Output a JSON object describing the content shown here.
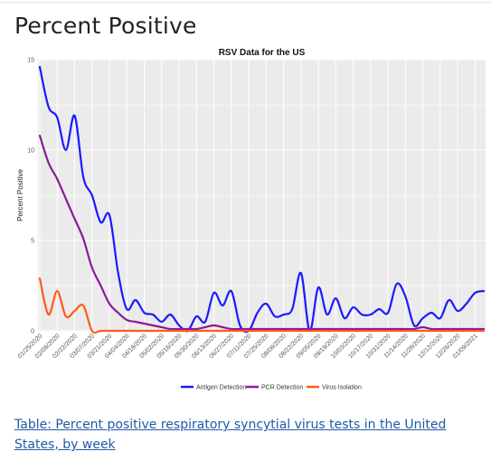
{
  "page": {
    "title": "Percent Positive",
    "table_link": "Table: Percent positive respiratory syncytial virus tests in the United States, by week"
  },
  "chart_data": {
    "type": "line",
    "title": "RSV Data for the US",
    "xlabel": "",
    "ylabel": "Percent Positive",
    "ylim": [
      0,
      15
    ],
    "yticks": [
      0,
      5,
      10,
      15
    ],
    "grid": true,
    "legend_position": "bottom",
    "x_tick_labels": [
      "01/25/2020",
      "02/08/2020",
      "02/22/2020",
      "03/07/2020",
      "03/21/2020",
      "04/04/2020",
      "04/18/2020",
      "05/02/2020",
      "05/16/2020",
      "05/30/2020",
      "06/13/2020",
      "06/27/2020",
      "07/11/2020",
      "07/25/2020",
      "08/08/2020",
      "08/22/2020",
      "09/05/2020",
      "09/19/2020",
      "10/03/2020",
      "10/17/2020",
      "10/31/2020",
      "11/14/2020",
      "11/28/2020",
      "12/12/2020",
      "12/26/2020",
      "01/09/2021"
    ],
    "x": [
      "01/25/2020",
      "02/01/2020",
      "02/08/2020",
      "02/15/2020",
      "02/22/2020",
      "02/29/2020",
      "03/07/2020",
      "03/14/2020",
      "03/21/2020",
      "03/28/2020",
      "04/04/2020",
      "04/11/2020",
      "04/18/2020",
      "04/25/2020",
      "05/02/2020",
      "05/09/2020",
      "05/16/2020",
      "05/23/2020",
      "05/30/2020",
      "06/06/2020",
      "06/13/2020",
      "06/20/2020",
      "06/27/2020",
      "07/04/2020",
      "07/11/2020",
      "07/18/2020",
      "07/25/2020",
      "08/01/2020",
      "08/08/2020",
      "08/15/2020",
      "08/22/2020",
      "08/29/2020",
      "09/05/2020",
      "09/12/2020",
      "09/19/2020",
      "09/26/2020",
      "10/03/2020",
      "10/10/2020",
      "10/17/2020",
      "10/24/2020",
      "10/31/2020",
      "11/07/2020",
      "11/14/2020",
      "11/21/2020",
      "11/28/2020",
      "12/05/2020",
      "12/12/2020",
      "12/19/2020",
      "12/26/2020",
      "01/02/2021",
      "01/09/2021",
      "01/16/2021"
    ],
    "series": [
      {
        "name": "Antigen Detection",
        "color": "#1a1aff",
        "values": [
          14.6,
          12.4,
          11.8,
          10.0,
          11.9,
          8.5,
          7.5,
          6.0,
          6.4,
          3.2,
          1.2,
          1.7,
          1.0,
          0.9,
          0.5,
          0.9,
          0.3,
          0.0,
          0.8,
          0.5,
          2.1,
          1.4,
          2.2,
          0.3,
          0.0,
          1.0,
          1.5,
          0.8,
          0.9,
          1.2,
          3.2,
          0.0,
          2.4,
          0.9,
          1.8,
          0.7,
          1.3,
          0.9,
          0.9,
          1.2,
          1.0,
          2.6,
          1.9,
          0.3,
          0.7,
          1.0,
          0.7,
          1.7,
          1.1,
          1.5,
          2.1,
          2.2
        ]
      },
      {
        "name": "PCR Detection",
        "color": "#8b1a9b",
        "values": [
          10.8,
          9.3,
          8.4,
          7.3,
          6.2,
          5.1,
          3.5,
          2.5,
          1.5,
          1.0,
          0.6,
          0.5,
          0.4,
          0.3,
          0.2,
          0.1,
          0.1,
          0.1,
          0.1,
          0.2,
          0.3,
          0.2,
          0.1,
          0.1,
          0.1,
          0.1,
          0.1,
          0.1,
          0.1,
          0.1,
          0.1,
          0.1,
          0.1,
          0.1,
          0.1,
          0.1,
          0.1,
          0.1,
          0.1,
          0.1,
          0.1,
          0.1,
          0.1,
          0.1,
          0.2,
          0.1,
          0.1,
          0.1,
          0.1,
          0.1,
          0.1,
          0.1
        ]
      },
      {
        "name": "Virus Isolation",
        "color": "#ff5a1a",
        "values": [
          2.9,
          0.9,
          2.2,
          0.8,
          1.1,
          1.4,
          0.0,
          0.0,
          0.0,
          0.0,
          0.0,
          0.0,
          0.0,
          0.0,
          0.0,
          0.0,
          0.0,
          0.0,
          0.0,
          0.0,
          0.0,
          0.0,
          0.0,
          0.0,
          0.0,
          0.0,
          0.0,
          0.0,
          0.0,
          0.0,
          0.0,
          0.0,
          0.0,
          0.0,
          0.0,
          0.0,
          0.0,
          0.0,
          0.0,
          0.0,
          0.0,
          0.0,
          0.0,
          0.0,
          0.0,
          0.0,
          0.0,
          0.0,
          0.0,
          0.0,
          0.0,
          0.0
        ]
      }
    ]
  }
}
